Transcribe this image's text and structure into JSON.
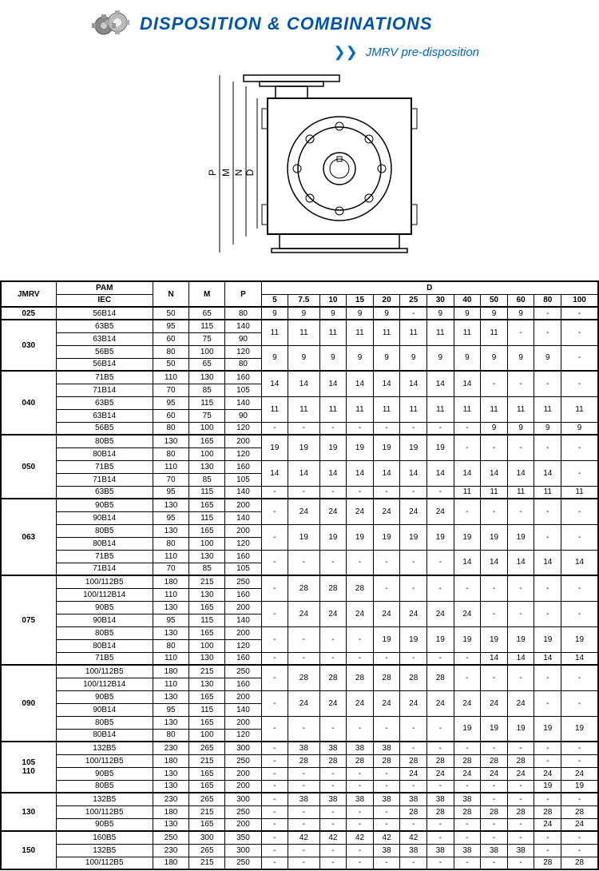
{
  "header": {
    "title": "DISPOSITION & COMBINATIONS",
    "subtitle": "JMRV pre-disposition"
  },
  "diagram": {
    "labels": [
      "P",
      "M",
      "N",
      "D"
    ]
  },
  "table": {
    "headers": {
      "jmrv": "JMRV",
      "pam": "PAM",
      "iec": "IEC",
      "n": "N",
      "m": "M",
      "p": "P",
      "d": "D",
      "d_cols": [
        "5",
        "7.5",
        "10",
        "15",
        "20",
        "25",
        "30",
        "40",
        "50",
        "60",
        "80",
        "100"
      ]
    },
    "groups": [
      {
        "jmrv": "025",
        "rows": [
          {
            "iec": "56B14",
            "n": "50",
            "m": "65",
            "p": "80",
            "d": [
              "9",
              "9",
              "9",
              "9",
              "9",
              "-",
              "9",
              "9",
              "9",
              "9",
              "-",
              "-"
            ]
          }
        ]
      },
      {
        "jmrv": "030",
        "rows": [
          {
            "iec": "63B5",
            "n": "95",
            "m": "115",
            "p": "140",
            "d": [
              "11",
              "11",
              "11",
              "11",
              "11",
              "11",
              "11",
              "11",
              "11",
              "-",
              "-",
              "-"
            ],
            "merge": 2
          },
          {
            "iec": "63B14",
            "n": "60",
            "m": "75",
            "p": "90"
          },
          {
            "iec": "56B5",
            "n": "80",
            "m": "100",
            "p": "120",
            "d": [
              "9",
              "9",
              "9",
              "9",
              "9",
              "9",
              "9",
              "9",
              "9",
              "9",
              "9",
              "-"
            ],
            "merge": 2
          },
          {
            "iec": "56B14",
            "n": "50",
            "m": "65",
            "p": "80"
          }
        ]
      },
      {
        "jmrv": "040",
        "rows": [
          {
            "iec": "71B5",
            "n": "110",
            "m": "130",
            "p": "160",
            "d": [
              "14",
              "14",
              "14",
              "14",
              "14",
              "14",
              "14",
              "14",
              "-",
              "-",
              "-",
              "-"
            ],
            "merge": 2
          },
          {
            "iec": "71B14",
            "n": "70",
            "m": "85",
            "p": "105"
          },
          {
            "iec": "63B5",
            "n": "95",
            "m": "115",
            "p": "140",
            "d": [
              "11",
              "11",
              "11",
              "11",
              "11",
              "11",
              "11",
              "11",
              "11",
              "11",
              "11",
              "11"
            ],
            "merge": 2
          },
          {
            "iec": "63B14",
            "n": "60",
            "m": "75",
            "p": "90"
          },
          {
            "iec": "56B5",
            "n": "80",
            "m": "100",
            "p": "120",
            "d": [
              "-",
              "-",
              "-",
              "-",
              "-",
              "-",
              "-",
              "-",
              "9",
              "9",
              "9",
              "9"
            ]
          }
        ]
      },
      {
        "jmrv": "050",
        "rows": [
          {
            "iec": "80B5",
            "n": "130",
            "m": "165",
            "p": "200",
            "d": [
              "19",
              "19",
              "19",
              "19",
              "19",
              "19",
              "19",
              "-",
              "-",
              "-",
              "-",
              "-"
            ],
            "merge": 2
          },
          {
            "iec": "80B14",
            "n": "80",
            "m": "100",
            "p": "120"
          },
          {
            "iec": "71B5",
            "n": "110",
            "m": "130",
            "p": "160",
            "d": [
              "14",
              "14",
              "14",
              "14",
              "14",
              "14",
              "14",
              "14",
              "14",
              "14",
              "14",
              "-"
            ],
            "merge": 2
          },
          {
            "iec": "71B14",
            "n": "70",
            "m": "85",
            "p": "105"
          },
          {
            "iec": "63B5",
            "n": "95",
            "m": "115",
            "p": "140",
            "d": [
              "-",
              "-",
              "-",
              "-",
              "-",
              "-",
              "-",
              "11",
              "11",
              "11",
              "11",
              "11"
            ]
          }
        ]
      },
      {
        "jmrv": "063",
        "rows": [
          {
            "iec": "90B5",
            "n": "130",
            "m": "165",
            "p": "200",
            "d": [
              "-",
              "24",
              "24",
              "24",
              "24",
              "24",
              "24",
              "-",
              "-",
              "-",
              "-",
              "-"
            ],
            "merge": 2
          },
          {
            "iec": "90B14",
            "n": "95",
            "m": "115",
            "p": "140"
          },
          {
            "iec": "80B5",
            "n": "130",
            "m": "165",
            "p": "200",
            "d": [
              "-",
              "19",
              "19",
              "19",
              "19",
              "19",
              "19",
              "19",
              "19",
              "19",
              "-",
              "-"
            ],
            "merge": 2
          },
          {
            "iec": "80B14",
            "n": "80",
            "m": "100",
            "p": "120"
          },
          {
            "iec": "71B5",
            "n": "110",
            "m": "130",
            "p": "160",
            "d": [
              "-",
              "-",
              "-",
              "-",
              "-",
              "-",
              "-",
              "14",
              "14",
              "14",
              "14",
              "14"
            ],
            "merge": 2
          },
          {
            "iec": "71B14",
            "n": "70",
            "m": "85",
            "p": "105"
          }
        ]
      },
      {
        "jmrv": "075",
        "rows": [
          {
            "iec": "100/112B5",
            "n": "180",
            "m": "215",
            "p": "250",
            "d": [
              "-",
              "28",
              "28",
              "28",
              "-",
              "-",
              "-",
              "-",
              "-",
              "-",
              "-",
              "-"
            ],
            "merge": 2
          },
          {
            "iec": "100/112B14",
            "n": "110",
            "m": "130",
            "p": "160"
          },
          {
            "iec": "90B5",
            "n": "130",
            "m": "165",
            "p": "200",
            "d": [
              "-",
              "24",
              "24",
              "24",
              "24",
              "24",
              "24",
              "24",
              "-",
              "-",
              "-",
              "-"
            ],
            "merge": 2
          },
          {
            "iec": "90B14",
            "n": "95",
            "m": "115",
            "p": "140"
          },
          {
            "iec": "80B5",
            "n": "130",
            "m": "165",
            "p": "200",
            "d": [
              "-",
              "-",
              "-",
              "-",
              "19",
              "19",
              "19",
              "19",
              "19",
              "19",
              "19",
              "19"
            ],
            "merge": 2
          },
          {
            "iec": "80B14",
            "n": "80",
            "m": "100",
            "p": "120"
          },
          {
            "iec": "71B5",
            "n": "110",
            "m": "130",
            "p": "160",
            "d": [
              "-",
              "-",
              "-",
              "-",
              "-",
              "-",
              "-",
              "-",
              "14",
              "14",
              "14",
              "14"
            ]
          }
        ]
      },
      {
        "jmrv": "090",
        "rows": [
          {
            "iec": "100/112B5",
            "n": "180",
            "m": "215",
            "p": "250",
            "d": [
              "-",
              "28",
              "28",
              "28",
              "28",
              "28",
              "28",
              "-",
              "-",
              "-",
              "-",
              "-"
            ],
            "merge": 2
          },
          {
            "iec": "100/112B14",
            "n": "110",
            "m": "130",
            "p": "160"
          },
          {
            "iec": "90B5",
            "n": "130",
            "m": "165",
            "p": "200",
            "d": [
              "-",
              "24",
              "24",
              "24",
              "24",
              "24",
              "24",
              "24",
              "24",
              "24",
              "-",
              "-"
            ],
            "merge": 2
          },
          {
            "iec": "90B14",
            "n": "95",
            "m": "115",
            "p": "140"
          },
          {
            "iec": "80B5",
            "n": "130",
            "m": "165",
            "p": "200",
            "d": [
              "-",
              "-",
              "-",
              "-",
              "-",
              "-",
              "-",
              "19",
              "19",
              "19",
              "19",
              "19"
            ],
            "merge": 2
          },
          {
            "iec": "80B14",
            "n": "80",
            "m": "100",
            "p": "120"
          }
        ]
      },
      {
        "jmrv": "105 110",
        "rows": [
          {
            "iec": "132B5",
            "n": "230",
            "m": "265",
            "p": "300",
            "d": [
              "-",
              "38",
              "38",
              "38",
              "38",
              "-",
              "-",
              "-",
              "-",
              "-",
              "-",
              "-"
            ]
          },
          {
            "iec": "100/112B5",
            "n": "180",
            "m": "215",
            "p": "250",
            "d": [
              "-",
              "28",
              "28",
              "28",
              "28",
              "28",
              "28",
              "28",
              "28",
              "28",
              "-",
              "-"
            ]
          },
          {
            "iec": "90B5",
            "n": "130",
            "m": "165",
            "p": "200",
            "d": [
              "-",
              "-",
              "-",
              "-",
              "-",
              "24",
              "24",
              "24",
              "24",
              "24",
              "24",
              "24"
            ]
          },
          {
            "iec": "80B5",
            "n": "130",
            "m": "165",
            "p": "200",
            "d": [
              "-",
              "-",
              "-",
              "-",
              "-",
              "-",
              "-",
              "-",
              "-",
              "-",
              "19",
              "19"
            ]
          }
        ]
      },
      {
        "jmrv": "130",
        "rows": [
          {
            "iec": "132B5",
            "n": "230",
            "m": "265",
            "p": "300",
            "d": [
              "-",
              "38",
              "38",
              "38",
              "38",
              "38",
              "38",
              "38",
              "-",
              "-",
              "-",
              "-"
            ]
          },
          {
            "iec": "100/112B5",
            "n": "180",
            "m": "215",
            "p": "250",
            "d": [
              "-",
              "-",
              "-",
              "-",
              "-",
              "28",
              "28",
              "28",
              "28",
              "28",
              "28",
              "28"
            ]
          },
          {
            "iec": "90B5",
            "n": "130",
            "m": "165",
            "p": "200",
            "d": [
              "-",
              "-",
              "-",
              "-",
              "-",
              "-",
              "-",
              "-",
              "-",
              "-",
              "24",
              "24"
            ]
          }
        ]
      },
      {
        "jmrv": "150",
        "rows": [
          {
            "iec": "160B5",
            "n": "250",
            "m": "300",
            "p": "350",
            "d": [
              "-",
              "42",
              "42",
              "42",
              "42",
              "42",
              "-",
              "-",
              "-",
              "-",
              "-",
              "-"
            ]
          },
          {
            "iec": "132B5",
            "n": "230",
            "m": "265",
            "p": "300",
            "d": [
              "-",
              "-",
              "-",
              "-",
              "38",
              "38",
              "38",
              "38",
              "38",
              "38",
              "-",
              "-"
            ]
          },
          {
            "iec": "100/112B5",
            "n": "180",
            "m": "215",
            "p": "250",
            "d": [
              "-",
              "-",
              "-",
              "-",
              "-",
              "-",
              "-",
              "-",
              "-",
              "-",
              "28",
              "28"
            ]
          }
        ]
      }
    ]
  }
}
